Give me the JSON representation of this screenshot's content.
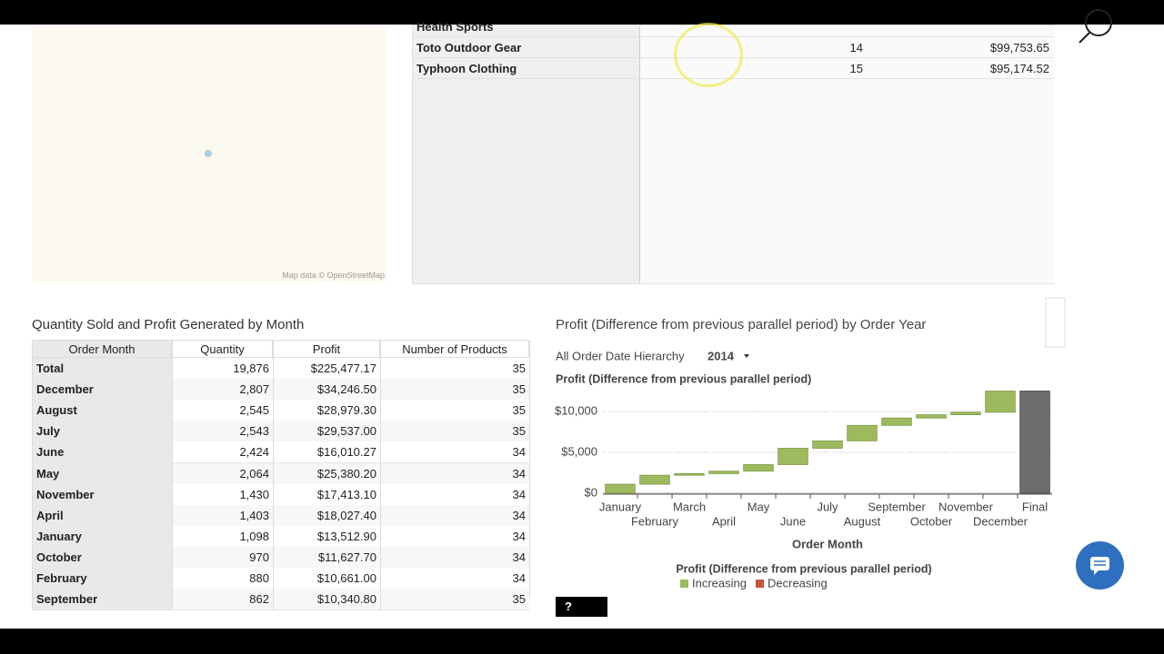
{
  "top_table": {
    "rows": [
      [
        "Health Sports"
      ],
      [
        "Toto Outdoor Gear",
        "14",
        "$99,753.65"
      ],
      [
        "Typhoon Clothing",
        "15",
        "$95,174.52"
      ]
    ]
  },
  "map": {
    "attribution": "Map data © OpenStreetMap"
  },
  "table": {
    "title": "Quantity Sold and Profit Generated by Month",
    "columns": [
      "Order Month",
      "Quantity",
      "Profit",
      "Number of Products"
    ],
    "rows": [
      [
        "Total",
        "19,876",
        "$225,477.17",
        "35"
      ],
      [
        "December",
        "2,807",
        "$34,246.50",
        "35"
      ],
      [
        "August",
        "2,545",
        "$28,979.30",
        "35"
      ],
      [
        "July",
        "2,543",
        "$29,537.00",
        "35"
      ],
      [
        "June",
        "2,424",
        "$16,010.27",
        "34"
      ],
      [
        "May",
        "2,064",
        "$25,380.20",
        "34"
      ],
      [
        "November",
        "1,430",
        "$17,413.10",
        "34"
      ],
      [
        "April",
        "1,403",
        "$18,027.40",
        "34"
      ],
      [
        "January",
        "1,098",
        "$13,512.90",
        "34"
      ],
      [
        "October",
        "970",
        "$11,627.70",
        "34"
      ],
      [
        "February",
        "880",
        "$10,661.00",
        "34"
      ],
      [
        "September",
        "862",
        "$10,340.80",
        "35"
      ]
    ]
  },
  "chart_data": {
    "type": "waterfall",
    "title": "Profit (Difference from previous parallel period) by Order Year",
    "breadcrumb": "All Order Date Hierarchy",
    "level": "2014",
    "subtitle": "Profit (Difference from previous parallel period)",
    "x_label": "Order Month",
    "categories": [
      "January",
      "February",
      "March",
      "April",
      "May",
      "June",
      "July",
      "August",
      "September",
      "October",
      "November",
      "December",
      "Final"
    ],
    "values": [
      1100,
      1100,
      200,
      300,
      800,
      2000,
      900,
      1900,
      900,
      400,
      300,
      2600,
      12500
    ],
    "ylim": [
      0,
      13000
    ],
    "yticks": [
      {
        "value": 0,
        "label": "$0"
      },
      {
        "value": 5000,
        "label": "$5,000"
      },
      {
        "value": 10000,
        "label": "$10,000"
      }
    ],
    "grid": true,
    "legend_title": "Profit (Difference from previous parallel period)",
    "legend": [
      {
        "name": "Increasing",
        "color": "#9dbb5e"
      },
      {
        "name": "Decreasing",
        "color": "#c9553f"
      }
    ],
    "total_color": "#6d6d6d"
  }
}
